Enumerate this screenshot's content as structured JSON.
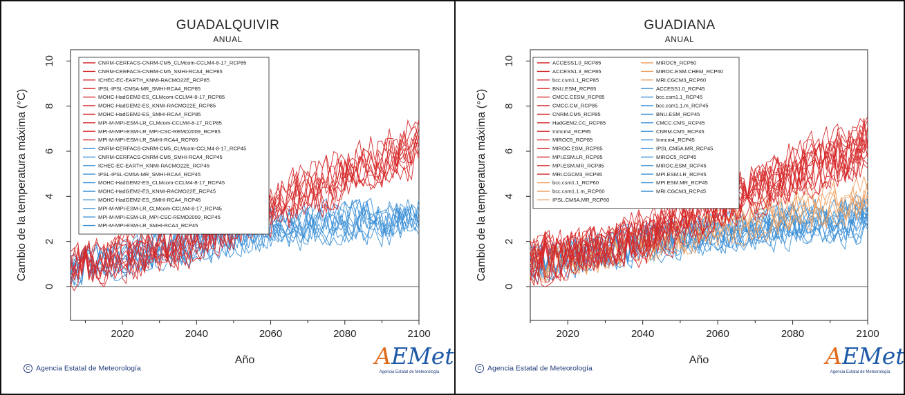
{
  "panels": [
    {
      "title": "GUADALQUIVIR",
      "subtitle": "ANUAL",
      "xlabel": "Año",
      "ylabel": "Cambio de la temperatura máxima (°C)",
      "credit": "Agencia Estatal de Meteorología",
      "logo_text": "AEMet",
      "logo_tagline": "Agencia Estatal de Meteorología"
    },
    {
      "title": "GUADIANA",
      "subtitle": "ANUAL",
      "xlabel": "Año",
      "ylabel": "Cambio de la temperatura máxima (°C)",
      "credit": "Agencia Estatal de Meteorología",
      "logo_text": "AEMet",
      "logo_tagline": "Agencia Estatal de Meteorología"
    }
  ],
  "colors": {
    "rcp85": "#d62728",
    "rcp60": "#f0a060",
    "rcp45": "#3a8fd6",
    "zero_line": "#555555",
    "axis": "#222222"
  },
  "chart_data": [
    {
      "type": "line",
      "title": "GUADALQUIVIR",
      "subtitle": "ANUAL",
      "xlabel": "Año",
      "ylabel": "Cambio de la temperatura máxima (°C)",
      "xlim": [
        2006,
        2100
      ],
      "ylim": [
        -1.5,
        10.5
      ],
      "xticks": [
        2020,
        2040,
        2060,
        2080,
        2100
      ],
      "yticks": [
        0,
        2,
        4,
        6,
        8,
        10
      ],
      "grid": false,
      "zero_line": true,
      "legend_position": "top-left",
      "x_start": 2006,
      "x_end": 2100,
      "trend_keyframes": {
        "rcp85": {
          "x": [
            2006,
            2040,
            2060,
            2080,
            2100
          ],
          "y": [
            0.8,
            2.2,
            3.6,
            5.0,
            6.3
          ]
        },
        "rcp60": {
          "x": [
            2006,
            2100
          ],
          "y": [
            0.8,
            4.5
          ]
        },
        "rcp45": {
          "x": [
            2006,
            2040,
            2060,
            2080,
            2100
          ],
          "y": [
            0.7,
            1.9,
            2.5,
            2.9,
            3.0
          ]
        }
      },
      "series": [
        {
          "name": "CNRM-CERFACS-CNRM-CM5_CLMcom-CCLM4-8-17_RCP85",
          "scenario": "rcp85"
        },
        {
          "name": "CNRM-CERFACS-CNRM-CM5_SMHI-RCA4_RCP85",
          "scenario": "rcp85"
        },
        {
          "name": "ICHEC-EC-EARTH_KNMI-RACMO22E_RCP85",
          "scenario": "rcp85"
        },
        {
          "name": "IPSL-IPSL-CM5A-MR_SMHI-RCA4_RCP85",
          "scenario": "rcp85"
        },
        {
          "name": "MOHC-HadGEM2-ES_CLMcom-CCLM4-8-17_RCP85",
          "scenario": "rcp85"
        },
        {
          "name": "MOHC-HadGEM2-ES_KNMI-RACMO22E_RCP85",
          "scenario": "rcp85"
        },
        {
          "name": "MOHC-HadGEM2-ES_SMHI-RCA4_RCP85",
          "scenario": "rcp85"
        },
        {
          "name": "MPI-M-MPI-ESM-LR_CLMcom-CCLM4-8-17_RCP85",
          "scenario": "rcp85"
        },
        {
          "name": "MPI-M-MPI-ESM-LR_MPI-CSC-REMO2009_RCP85",
          "scenario": "rcp85"
        },
        {
          "name": "MPI-M-MPI-ESM-LR_SMHI-RCA4_RCP85",
          "scenario": "rcp85"
        },
        {
          "name": "CNRM-CERFACS-CNRM-CM5_CLMcom-CCLM4-8-17_RCP45",
          "scenario": "rcp45"
        },
        {
          "name": "CNRM-CERFACS-CNRM-CM5_SMHI-RCA4_RCP45",
          "scenario": "rcp45"
        },
        {
          "name": "ICHEC-EC-EARTH_KNMI-RACMO22E_RCP45",
          "scenario": "rcp45"
        },
        {
          "name": "IPSL-IPSL-CM5A-MR_SMHI-RCA4_RCP45",
          "scenario": "rcp45"
        },
        {
          "name": "MOHC-HadGEM2-ES_CLMcom-CCLM4-8-17_RCP45",
          "scenario": "rcp45"
        },
        {
          "name": "MOHC-HadGEM2-ES_KNMI-RACMO22E_RCP45",
          "scenario": "rcp45"
        },
        {
          "name": "MOHC-HadGEM2-ES_SMHI-RCA4_RCP45",
          "scenario": "rcp45"
        },
        {
          "name": "MPI-M-MPI-ESM-LR_CLMcom-CCLM4-8-17_RCP45",
          "scenario": "rcp45"
        },
        {
          "name": "MPI-M-MPI-ESM-LR_MPI-CSC-REMO2009_RCP45",
          "scenario": "rcp45"
        },
        {
          "name": "MPI-M-MPI-ESM-LR_SMHI-RCA4_RCP45",
          "scenario": "rcp45"
        }
      ]
    },
    {
      "type": "line",
      "title": "GUADIANA",
      "subtitle": "ANUAL",
      "xlabel": "Año",
      "ylabel": "Cambio de la temperatura máxima (°C)",
      "xlim": [
        2010,
        2100
      ],
      "ylim": [
        -1.5,
        10.5
      ],
      "xticks": [
        2020,
        2040,
        2060,
        2080,
        2100
      ],
      "yticks": [
        0,
        2,
        4,
        6,
        8,
        10
      ],
      "grid": false,
      "zero_line": true,
      "legend_position": "top-left",
      "x_start": 2010,
      "x_end": 2100,
      "trend_keyframes": {
        "rcp85": {
          "x": [
            2010,
            2040,
            2060,
            2080,
            2100
          ],
          "y": [
            1.1,
            2.2,
            3.6,
            5.0,
            6.3
          ]
        },
        "rcp60": {
          "x": [
            2010,
            2040,
            2060,
            2080,
            2100
          ],
          "y": [
            1.0,
            1.8,
            2.6,
            3.3,
            3.9
          ]
        },
        "rcp45": {
          "x": [
            2010,
            2040,
            2060,
            2080,
            2100
          ],
          "y": [
            1.0,
            1.9,
            2.4,
            2.8,
            3.0
          ]
        }
      },
      "series": [
        {
          "name": "ACCESS1.0_RCP85",
          "scenario": "rcp85"
        },
        {
          "name": "ACCESS1.3_RCP85",
          "scenario": "rcp85"
        },
        {
          "name": "bcc.csm1.1_RCP85",
          "scenario": "rcp85"
        },
        {
          "name": "BNU.ESM_RCP85",
          "scenario": "rcp85"
        },
        {
          "name": "CMCC.CESM_RCP85",
          "scenario": "rcp85"
        },
        {
          "name": "CMCC.CM_RCP85",
          "scenario": "rcp85"
        },
        {
          "name": "CNRM.CM5_RCP85",
          "scenario": "rcp85"
        },
        {
          "name": "HadGEM2.CC_RCP85",
          "scenario": "rcp85"
        },
        {
          "name": "Inmcm4_RCP85",
          "scenario": "rcp85"
        },
        {
          "name": "MIROC5_RCP85",
          "scenario": "rcp85"
        },
        {
          "name": "MIROC.ESM_RCP85",
          "scenario": "rcp85"
        },
        {
          "name": "MPI.ESM.LR_RCP85",
          "scenario": "rcp85"
        },
        {
          "name": "MPI.ESM.MR_RCP85",
          "scenario": "rcp85"
        },
        {
          "name": "MRI.CGCM3_RCP85",
          "scenario": "rcp85"
        },
        {
          "name": "bcc.csm1.1_RCP60",
          "scenario": "rcp60"
        },
        {
          "name": "bcc.csm1.1.m_RCP60",
          "scenario": "rcp60"
        },
        {
          "name": "IPSL.CM5A.MR_RCP60",
          "scenario": "rcp60"
        },
        {
          "name": "MIROC5_RCP60",
          "scenario": "rcp60"
        },
        {
          "name": "MIROC.ESM.CHEM_RCP60",
          "scenario": "rcp60"
        },
        {
          "name": "MRI.CGCM3_RCP60",
          "scenario": "rcp60"
        },
        {
          "name": "ACCESS1.0_RCP45",
          "scenario": "rcp45"
        },
        {
          "name": "bcc.csm1.1_RCP45",
          "scenario": "rcp45"
        },
        {
          "name": "bcc.csm1.1.m_RCP45",
          "scenario": "rcp45"
        },
        {
          "name": "BNU.ESM_RCP45",
          "scenario": "rcp45"
        },
        {
          "name": "CMCC.CMS_RCP45",
          "scenario": "rcp45"
        },
        {
          "name": "CNRM.CM5_RCP45",
          "scenario": "rcp45"
        },
        {
          "name": "Inmcm4_RCP45",
          "scenario": "rcp45"
        },
        {
          "name": "IPSL.CM5A.MR_RCP45",
          "scenario": "rcp45"
        },
        {
          "name": "MIROC5_RCP45",
          "scenario": "rcp45"
        },
        {
          "name": "MIROC.ESM_RCP45",
          "scenario": "rcp45"
        },
        {
          "name": "MPI.ESM.LR_RCP45",
          "scenario": "rcp45"
        },
        {
          "name": "MPI.ESM.MR_RCP45",
          "scenario": "rcp45"
        },
        {
          "name": "MRI.CGCM3_RCP45",
          "scenario": "rcp45"
        }
      ]
    }
  ]
}
